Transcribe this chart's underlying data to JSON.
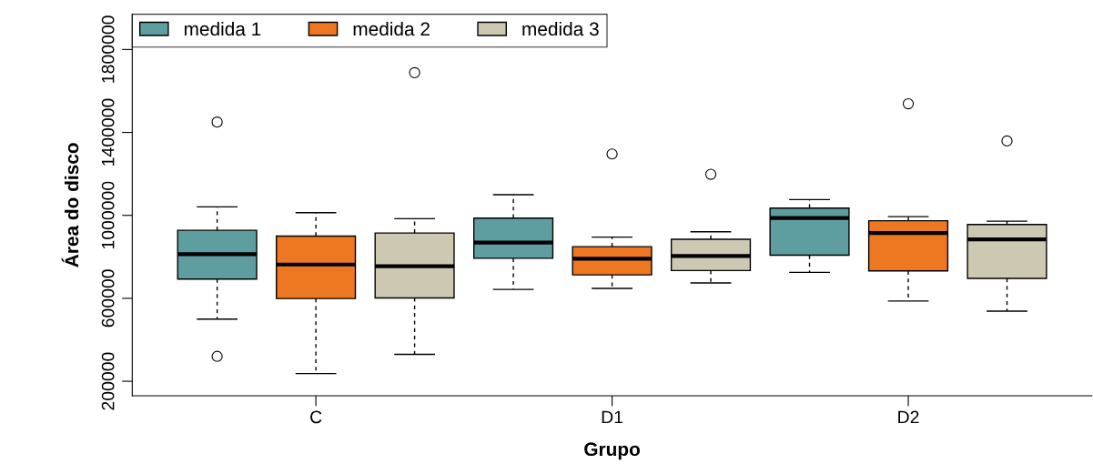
{
  "chart_data": {
    "type": "box",
    "xlabel": "Grupo",
    "ylabel": "Área do disco",
    "categories": [
      "C",
      "D1",
      "D2"
    ],
    "ylim": [
      130000,
      1970000
    ],
    "yticks": [
      200000,
      600000,
      1000000,
      1400000,
      1800000
    ],
    "grid": false,
    "legend": "top left",
    "series": [
      {
        "name": "medida 1",
        "color": "#5f9ea0",
        "boxes": [
          {
            "low": 500000,
            "q1": 693000,
            "median": 813000,
            "q3": 928000,
            "high": 1041000,
            "outliers": [
              1450000,
              320000
            ]
          },
          {
            "low": 643000,
            "q1": 793000,
            "median": 869000,
            "q3": 987000,
            "high": 1100000
          },
          {
            "low": 725000,
            "q1": 808000,
            "median": 987000,
            "q3": 1035000,
            "high": 1076000
          }
        ]
      },
      {
        "name": "medida 2",
        "color": "#ee7722",
        "boxes": [
          {
            "low": 237000,
            "q1": 599000,
            "median": 763000,
            "q3": 900000,
            "high": 1013000
          },
          {
            "low": 648000,
            "q1": 713000,
            "median": 791000,
            "q3": 849000,
            "high": 895000,
            "outliers": [
              1296000
            ]
          },
          {
            "low": 587000,
            "q1": 732000,
            "median": 915000,
            "q3": 974000,
            "high": 994000,
            "outliers": [
              1538000
            ]
          }
        ]
      },
      {
        "name": "medida 3",
        "color": "#cdc8b1",
        "boxes": [
          {
            "low": 330000,
            "q1": 602000,
            "median": 755000,
            "q3": 915000,
            "high": 984000,
            "outliers": [
              1688000
            ]
          },
          {
            "low": 674000,
            "q1": 734000,
            "median": 804000,
            "q3": 885000,
            "high": 921000,
            "outliers": [
              1198000
            ]
          },
          {
            "low": 538000,
            "q1": 696000,
            "median": 884000,
            "q3": 956000,
            "high": 972000,
            "outliers": [
              1359000
            ]
          }
        ]
      }
    ]
  }
}
